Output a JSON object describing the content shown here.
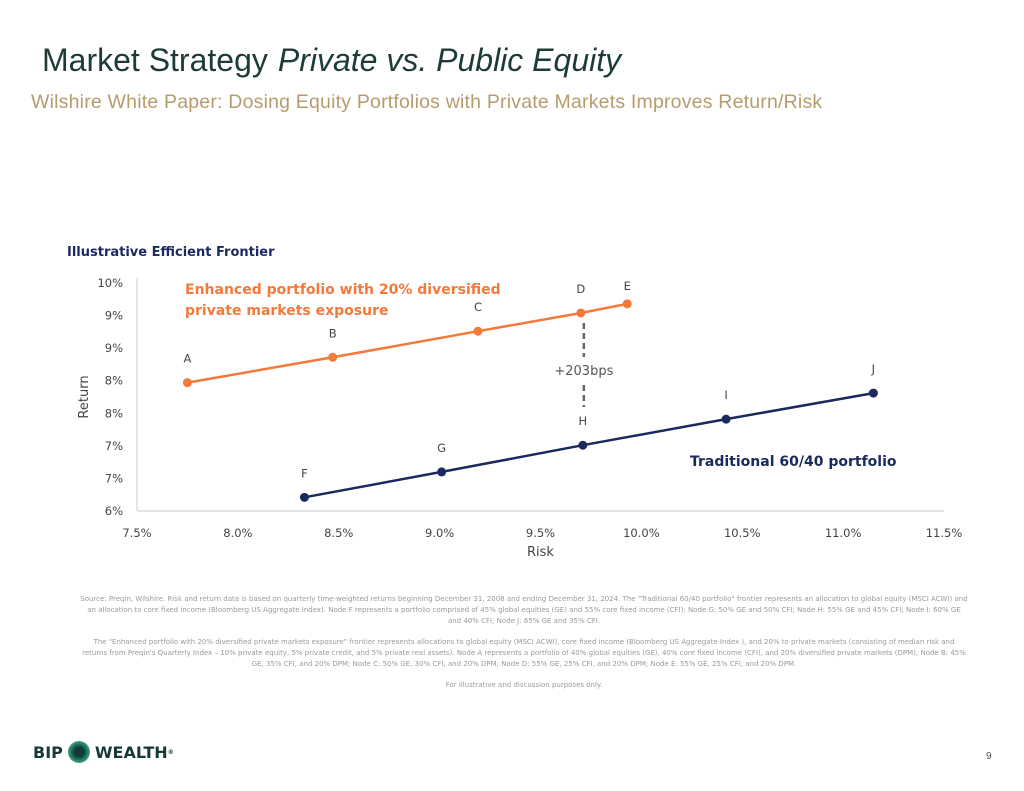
{
  "header": {
    "title": "Market Strategy",
    "title_italic": "Private vs. Public Equity",
    "subtitle": "Wilshire White Paper: Dosing Equity Portfolios with Private Markets Improves Return/Risk"
  },
  "chart_data": {
    "type": "line",
    "title": "Illustrative Efficient Frontier",
    "xlabel": "Risk",
    "ylabel": "Return",
    "xlim": [
      7.5,
      11.5
    ],
    "ylim": [
      6.0,
      9.5
    ],
    "x_ticks": [
      7.5,
      8.0,
      8.5,
      9.0,
      9.5,
      10.0,
      10.5,
      11.0,
      11.5
    ],
    "x_tick_labels": [
      "7.5%",
      "8.0%",
      "8.5%",
      "9.0%",
      "9.5%",
      "10.0%",
      "10.5%",
      "11.0%",
      "11.5%"
    ],
    "y_ticks": [
      6.0,
      6.5,
      7.0,
      7.5,
      8.0,
      8.5,
      9.0,
      9.5
    ],
    "y_tick_labels": [
      "6%",
      "7%",
      "7%",
      "8%",
      "8%",
      "9%",
      "9%",
      "10%"
    ],
    "grid": false,
    "series": [
      {
        "name": "Enhanced portfolio with 20% diversified private markets exposure",
        "label_lines": [
          "Enhanced portfolio with 20% diversified",
          "private markets exposure"
        ],
        "color": "#f4793b",
        "points": [
          {
            "label": "A",
            "x": 7.75,
            "y": 7.97
          },
          {
            "label": "B",
            "x": 8.47,
            "y": 8.36
          },
          {
            "label": "C",
            "x": 9.19,
            "y": 8.76
          },
          {
            "label": "D",
            "x": 9.7,
            "y": 9.04
          },
          {
            "label": "E",
            "x": 9.93,
            "y": 9.18
          }
        ]
      },
      {
        "name": "Traditional 60/40 portfolio",
        "label_lines": [
          "Traditional 60/40 portfolio"
        ],
        "color": "#1b2a5e",
        "points": [
          {
            "label": "F",
            "x": 8.33,
            "y": 6.21
          },
          {
            "label": "G",
            "x": 9.01,
            "y": 6.6
          },
          {
            "label": "H",
            "x": 9.71,
            "y": 7.01
          },
          {
            "label": "I",
            "x": 10.42,
            "y": 7.41
          },
          {
            "label": "J",
            "x": 11.15,
            "y": 7.81
          }
        ]
      }
    ],
    "annotation": "+203bps"
  },
  "notes": {
    "source": "Source: Preqin, Wilshire. Risk and return data is based on quarterly time-weighted returns beginning December 31, 2008 and ending December 31, 2024. The \"Traditional 60/40 portfolio\" frontier represents an allocation to global equity (MSCI ACWI) and an allocation to core fixed income (Bloomberg US Aggregate Index). Node F represents a portfolio comprised of 45% global equities (GE) and 55% core fixed income (CFI); Node G: 50% GE and 50% CFI; Node H: 55% GE and 45% CFI; Node I: 60% GE and 40% CFI; Node J: 65% GE and 35% CFI.",
    "enhanced": "The \"Enhanced portfolio with 20% diversified private markets exposure\" frontier represents allocations to global equity (MSCI ACWI), core fixed income (Bloomberg US Aggregate Index ), and 20% to private markets (consisting of median risk and returns from Preqin's Quarterly Index – 10% private equity, 5% private credit, and 5% private real assets). Node A represents a portfolio of 40% global equities (GE), 40% core fixed income (CFI), and 20% diversified private markets (DPM); Node B: 45% GE, 35% CFI, and 20% DPM; Node C: 50% GE, 30% CFI, and 20% DPM; Node D: 55% GE, 25% CFI, and 20% DPM; Node E: 55% GE, 25% CFI, and 20% DPM.",
    "disclaimer": "For illustrative and discussion purposes only."
  },
  "footer": {
    "logo_left": "BIP",
    "logo_right": "WEALTH",
    "page_number": "9"
  }
}
